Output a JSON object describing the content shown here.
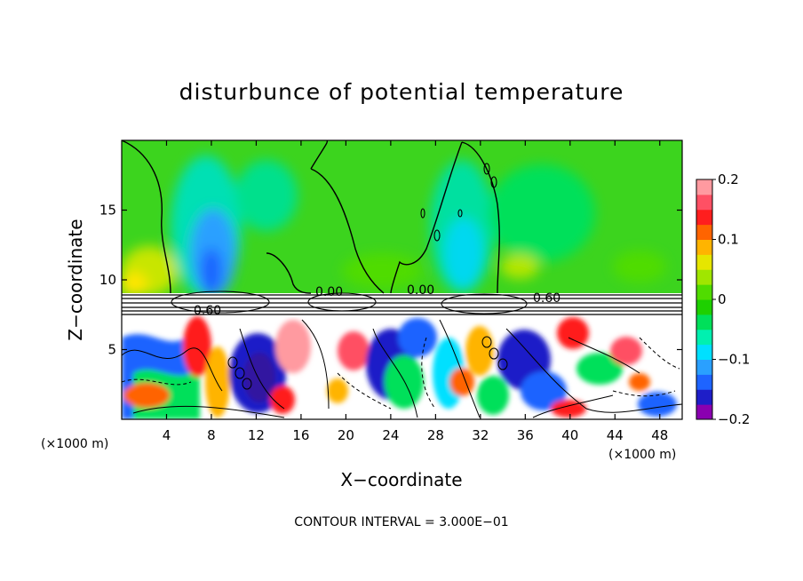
{
  "chart_data": {
    "type": "heatmap",
    "title": "disturbunce of potential temperature",
    "xlabel": "X−coordinate",
    "ylabel": "Z−coordinate",
    "x_unit": "(×1000 m)",
    "x_unit_right": "(×1000 m)",
    "xlim": [
      0,
      50
    ],
    "ylim": [
      0,
      20
    ],
    "x_ticks": [
      4,
      8,
      12,
      16,
      20,
      24,
      28,
      32,
      36,
      40,
      44,
      48
    ],
    "y_ticks": [
      5,
      10,
      15
    ],
    "colorbar": {
      "range": [
        -0.2,
        0.2
      ],
      "tick_values": [
        0.2,
        0.1,
        0,
        -0.1,
        -0.2
      ],
      "tick_labels": [
        "0.2",
        "0.1",
        "0",
        "−0.1",
        "−0.2"
      ],
      "colors": [
        "#8a00b0",
        "#1e1ec8",
        "#1e64ff",
        "#2aa0ff",
        "#00e0ff",
        "#00f0b0",
        "#00e05a",
        "#1ed000",
        "#50dc00",
        "#a0e600",
        "#e6e600",
        "#ffb400",
        "#ff6400",
        "#ff1e1e",
        "#ff5064",
        "#ff9aa0"
      ]
    },
    "contour_interval_text": "CONTOUR INTERVAL = 3.000E−01",
    "contour_labels": [
      "0.00",
      "0.00",
      "0.60",
      "0.60"
    ]
  }
}
